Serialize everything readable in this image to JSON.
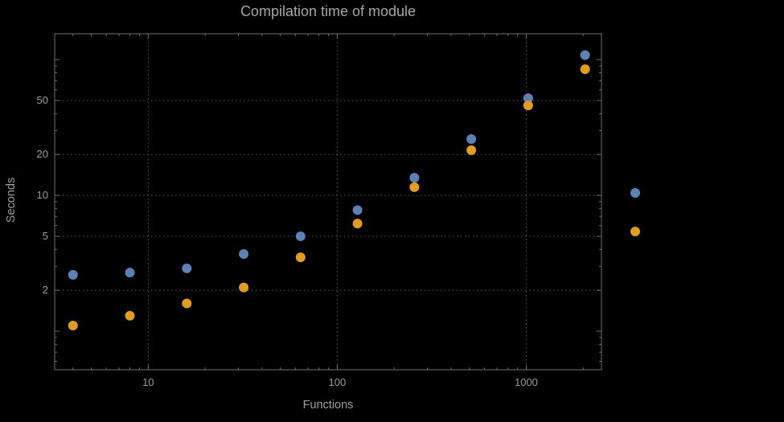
{
  "chart_data": {
    "type": "scatter",
    "title": "Compilation time of module",
    "xlabel": "Functions",
    "ylabel": "Seconds",
    "x_scale": "log",
    "y_scale": "log",
    "grid": true,
    "xlim": [
      3.2,
      2500
    ],
    "ylim": [
      0.52,
      155
    ],
    "x_ticks": [
      10,
      100,
      1000
    ],
    "y_ticks": [
      2,
      5,
      10,
      20,
      50
    ],
    "x": [
      4,
      8,
      16,
      32,
      64,
      128,
      256,
      512,
      1024,
      2048
    ],
    "series": [
      {
        "name": "series-1-blue",
        "color": "#5E81B5",
        "values": [
          2.6,
          2.7,
          2.9,
          3.7,
          5.0,
          7.8,
          13.5,
          26,
          52,
          108
        ]
      },
      {
        "name": "series-2-orange",
        "color": "#E19C24",
        "values": [
          1.1,
          1.3,
          1.6,
          2.1,
          3.5,
          6.2,
          11.5,
          21.5,
          46,
          85
        ]
      }
    ],
    "legend_position": "right-of-plot",
    "colors": {
      "background": "#000000",
      "frame": "#6f6f6f",
      "grid": "#5c5c5c",
      "text": "#9c9c9c",
      "title": "#a6a6a6"
    }
  }
}
